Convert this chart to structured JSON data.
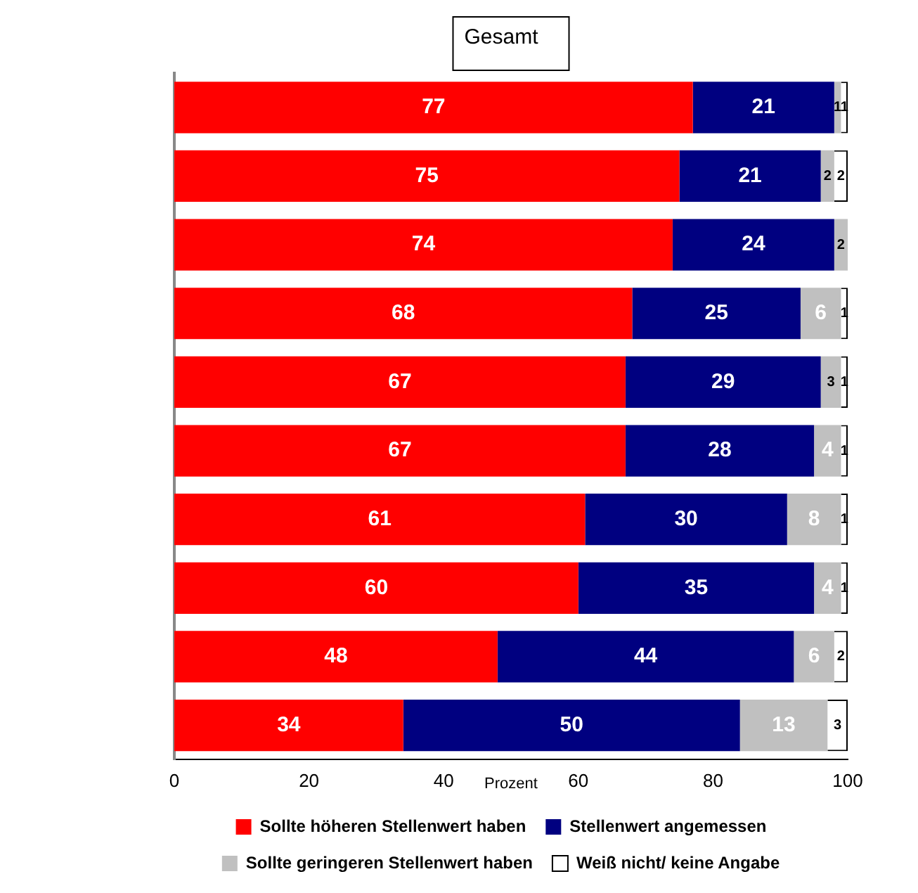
{
  "chart_data": {
    "type": "bar",
    "orientation": "horizontal",
    "stacked": true,
    "title": "Gesamt",
    "xlabel": "Prozent",
    "categories": [
      null,
      null,
      null,
      null,
      null,
      null,
      null,
      null,
      null,
      null
    ],
    "series": [
      {
        "name": "Sollte höheren Stellenwert haben",
        "color": "#ff0000",
        "values": [
          77,
          75,
          74,
          68,
          67,
          67,
          61,
          60,
          48,
          34
        ]
      },
      {
        "name": "Stellenwert angemessen",
        "color": "#000080",
        "values": [
          21,
          21,
          24,
          25,
          29,
          28,
          30,
          35,
          44,
          50
        ]
      },
      {
        "name": "Sollte geringeren Stellenwert haben",
        "color": "#c0c0c0",
        "values": [
          1,
          2,
          2,
          6,
          3,
          4,
          8,
          4,
          6,
          13
        ]
      },
      {
        "name": "Weiß nicht/ keine Angabe",
        "color": "#ffffff",
        "values": [
          1,
          2,
          null,
          1,
          1,
          1,
          1,
          1,
          2,
          3
        ]
      }
    ],
    "xlim": [
      0,
      100
    ],
    "xticks": [
      0,
      20,
      40,
      60,
      80,
      100
    ],
    "grid": false,
    "legend": "bottom",
    "data_labels": true
  }
}
